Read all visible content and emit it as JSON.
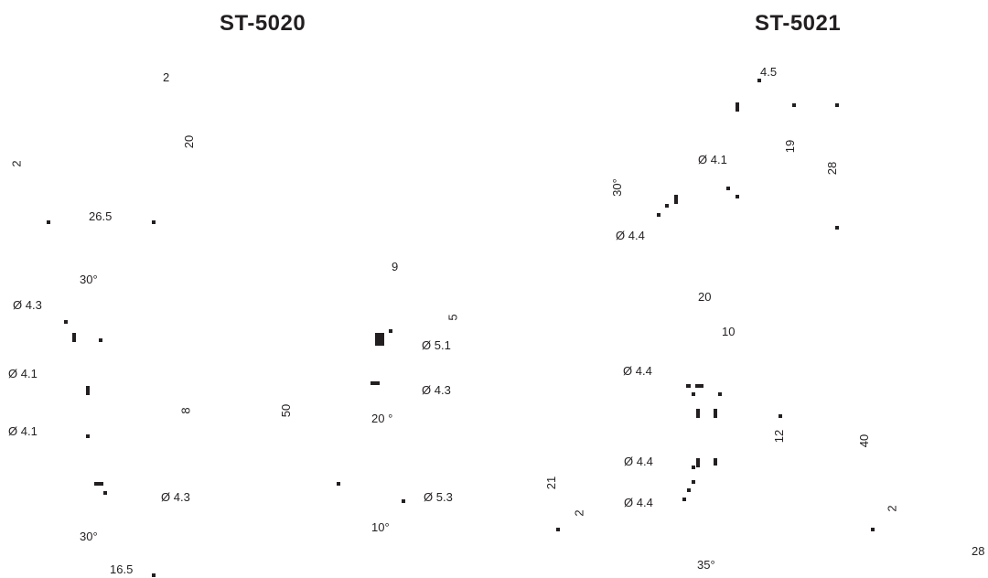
{
  "drawings": [
    {
      "title": "ST-5020",
      "labels": [
        "2",
        "20",
        "2",
        "26.5",
        "30°",
        "Ø 4.3",
        "Ø 4.1",
        "Ø 4.1",
        "8",
        "50",
        "9",
        "5",
        "Ø 5.1",
        "Ø 4.3",
        "20 °",
        "Ø 4.3",
        "Ø 5.3",
        "30°",
        "10°",
        "16.5"
      ]
    },
    {
      "title": "ST-5021",
      "labels": [
        "4.5",
        "19",
        "28",
        "Ø 4.1",
        "30°",
        "Ø 4.4",
        "20",
        "10",
        "Ø 4.4",
        "12",
        "40",
        "Ø 4.4",
        "Ø 4.4",
        "21",
        "2",
        "2",
        "35°",
        "28"
      ]
    }
  ],
  "colors": {
    "ink": "#231f20",
    "background": "#ffffff"
  }
}
